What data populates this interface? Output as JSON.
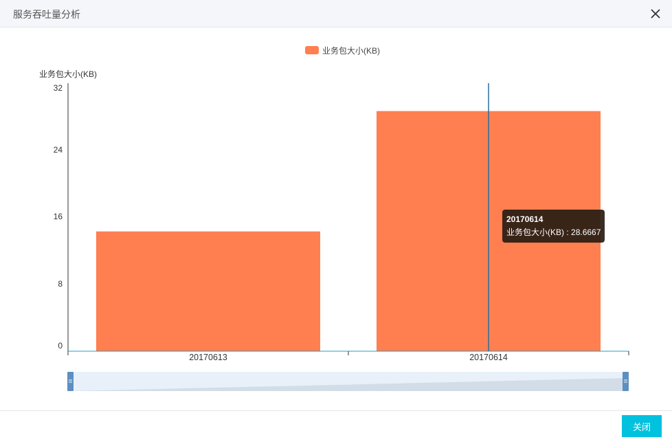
{
  "dialog": {
    "title": "服务吞吐量分析",
    "close_button_label": "关闭"
  },
  "colors": {
    "bar": "#ff7f50",
    "axis": "#333333",
    "x_axis": "#1aa3c9",
    "pointer": "#2b6f9e",
    "slider_bg": "#e8f1fa",
    "slider_fill": "#d3dde8",
    "slider_handle": "#5d8fc0",
    "button": "#00c1de"
  },
  "tooltip": {
    "date": "20170614",
    "series_name": "业务包大小(KB)",
    "separator": " : ",
    "value": "28.6667"
  },
  "chart_data": {
    "type": "bar",
    "categories": [
      "20170613",
      "20170614"
    ],
    "series": [
      {
        "name": "业务包大小(KB)",
        "values": [
          14.3,
          28.6667
        ]
      }
    ],
    "ylabel": "业务包大小(KB)",
    "ylim": [
      0,
      32
    ],
    "yticks": [
      "0",
      "8",
      "16",
      "24",
      "32"
    ],
    "legend": "top-center",
    "grid": false,
    "data_zoom": true
  }
}
